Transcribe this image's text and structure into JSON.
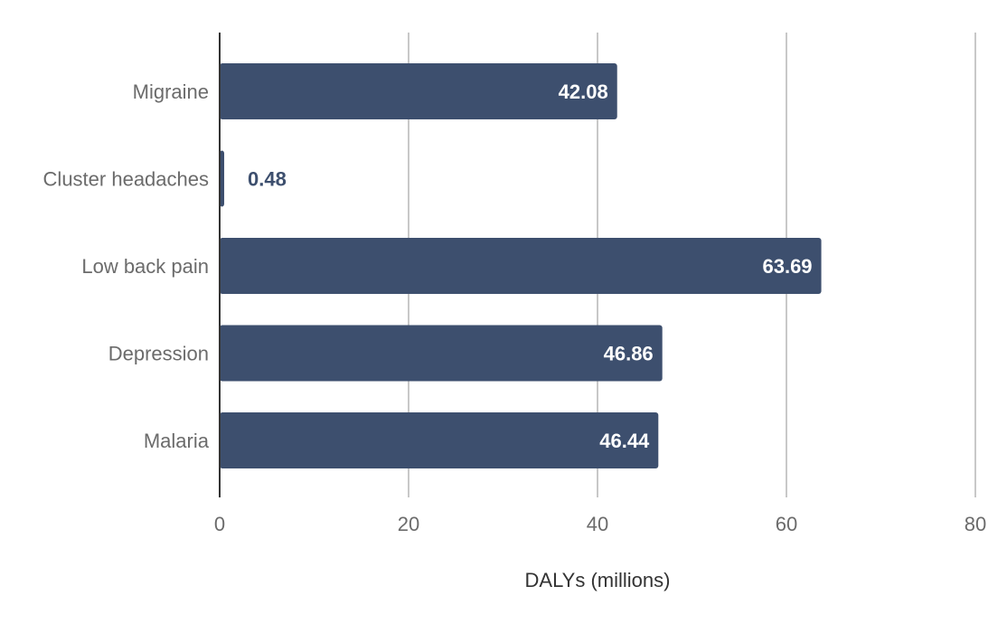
{
  "chart_data": {
    "type": "bar",
    "orientation": "horizontal",
    "categories": [
      "Migraine",
      "Cluster headaches",
      "Low back pain",
      "Depression",
      "Malaria"
    ],
    "values": [
      42.08,
      0.48,
      63.69,
      46.86,
      46.44
    ],
    "value_labels": [
      "42.08",
      "0.48",
      "63.69",
      "46.86",
      "46.44"
    ],
    "xlabel": "DALYs (millions)",
    "ylabel": "",
    "xlim": [
      0,
      80
    ],
    "xticks": [
      0,
      20,
      40,
      60,
      80
    ],
    "xtick_labels": [
      "0",
      "20",
      "40",
      "60",
      "80"
    ],
    "grid": "vertical",
    "legend": "none",
    "colors": {
      "bar": "#3d4f6e",
      "label_inside": "#ffffff",
      "label_outside": "#3d4f6e",
      "grid": "#c8c8c8",
      "axis": "#333333"
    }
  }
}
